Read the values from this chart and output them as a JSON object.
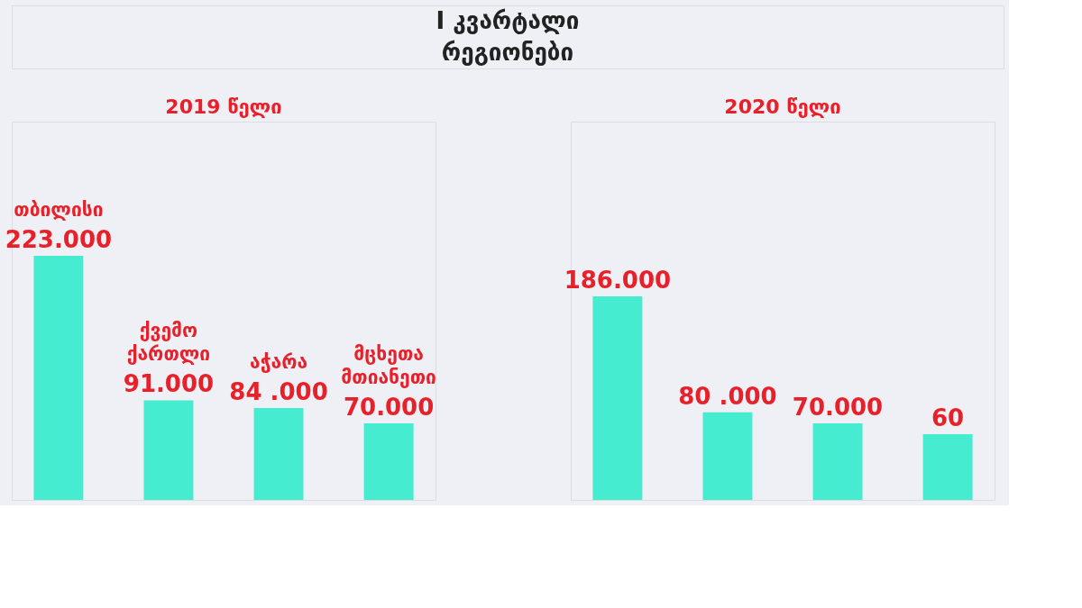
{
  "chart_data": [
    {
      "type": "other",
      "title": "I კვარტალი",
      "subtitle": "რეგიონები"
    },
    {
      "type": "bar",
      "title": "2019 წელი",
      "categories": [
        "თბილისი",
        "ქვემო ქართლი",
        "აჭარა",
        "მცხეთა მთიანეთი"
      ],
      "values": [
        223,
        91,
        84,
        70
      ],
      "value_labels": [
        "223.000",
        "91.000",
        "84 .000",
        "70.000"
      ],
      "color": "#45ecd0"
    },
    {
      "type": "bar",
      "title": "2020 წელი",
      "categories": [
        null,
        null,
        null,
        null
      ],
      "values": [
        186,
        80,
        70,
        60
      ],
      "value_labels": [
        "186.000",
        "80 .000",
        "70.000",
        "60"
      ],
      "color": "#45ecd0"
    }
  ]
}
